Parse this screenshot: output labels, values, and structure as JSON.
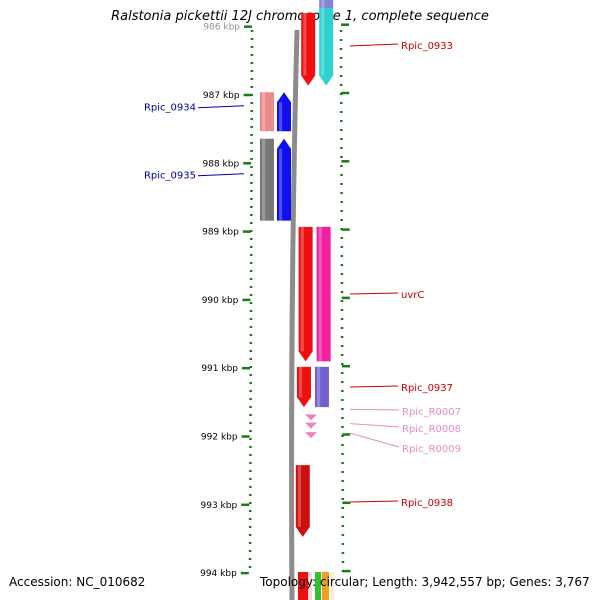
{
  "title": "Ralstonia pickettii 12J chromosome 1, complete sequence",
  "accession_label": "Accession: NC_010682",
  "summary_label": "Topology: circular; Length: 3,942,557 bp; Genes: 3,767",
  "ruler": {
    "unit": "kbp",
    "ticks": [
      {
        "kbp": 986,
        "label": "986 kbp"
      },
      {
        "kbp": 987,
        "label": "987 kbp"
      },
      {
        "kbp": 988,
        "label": "988 kbp"
      },
      {
        "kbp": 989,
        "label": "989 kbp"
      },
      {
        "kbp": 990,
        "label": "990 kbp"
      },
      {
        "kbp": 991,
        "label": "991 kbp"
      },
      {
        "kbp": 992,
        "label": "992 kbp"
      },
      {
        "kbp": 993,
        "label": "993 kbp"
      },
      {
        "kbp": 994,
        "label": "994 kbp"
      }
    ]
  },
  "colors": {
    "tick_green": "#1a7a1a",
    "backbone": "#8c8c8c",
    "forward_label": "#cc0000",
    "reverse_label": "#0000aa",
    "rna_label": "#e98bbf"
  },
  "features": {
    "reverse": [
      {
        "name": "Rpic_0934",
        "start": 986.96,
        "end": 987.53,
        "color": "#1010ee",
        "companion": "#ea8a8a",
        "label": "Rpic_0934"
      },
      {
        "name": "Rpic_0935",
        "start": 987.64,
        "end": 988.84,
        "color": "#1010ee",
        "companion": "#777777",
        "label": "Rpic_0935"
      }
    ],
    "forward": [
      {
        "name": "Rpic_0933",
        "start": 985.8,
        "end": 986.86,
        "color": "#ee1010",
        "companion": "#30d0d0",
        "companion2": "#8a84d8",
        "label": "Rpic_0933"
      },
      {
        "name": "uvrC",
        "start": 988.93,
        "end": 990.9,
        "color": "#ee1010",
        "companion": "#f020a0",
        "label": "uvrC"
      },
      {
        "name": "Rpic_0937",
        "start": 990.98,
        "end": 991.57,
        "color": "#ee1010",
        "companion": "#7060d0",
        "label": "Rpic_0937"
      },
      {
        "name": "Rpic_0938",
        "start": 992.42,
        "end": 993.47,
        "color": "#cc1010",
        "label": "Rpic_0938"
      }
    ],
    "rna": [
      {
        "name": "Rpic_R0007",
        "pos": 991.72,
        "color": "#f080c0",
        "label": "Rpic_R0007"
      },
      {
        "name": "Rpic_R0008",
        "pos": 991.84,
        "color": "#f080c0",
        "label": "Rpic_R0008"
      },
      {
        "name": "Rpic_R0009",
        "pos": 991.98,
        "color": "#f080c0",
        "label": "Rpic_R0009"
      }
    ],
    "bottom_strips": [
      "#f8d8d8",
      "#ee1010",
      "#30c030",
      "#f0a020",
      "#f8f0d0"
    ]
  }
}
